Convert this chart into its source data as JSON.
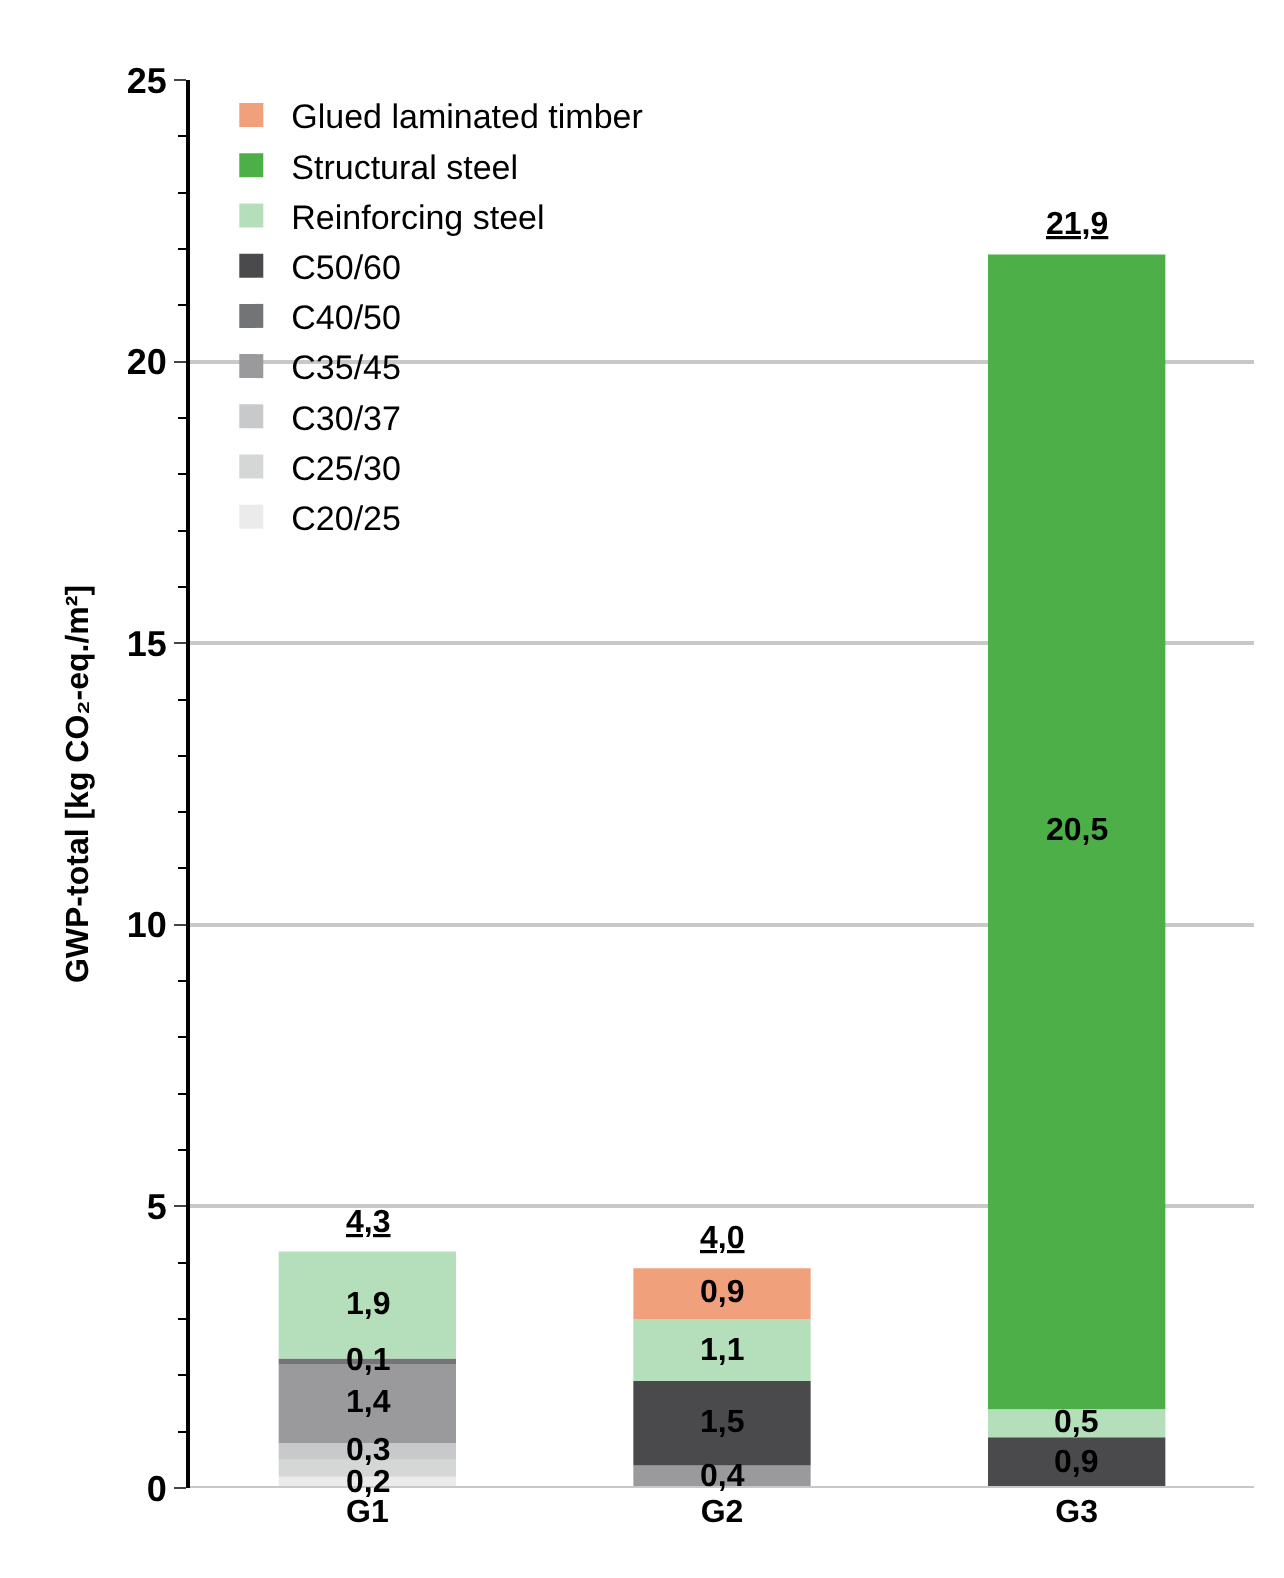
{
  "chart_data": {
    "type": "bar",
    "stacked": true,
    "ylabel": "GWP-total [kg CO₂-eq./m²]",
    "categories": [
      "G1",
      "G2",
      "G3"
    ],
    "series": [
      {
        "name": "C20/25",
        "color": "#ebebeb",
        "values": [
          0.2,
          null,
          null
        ],
        "value_labels": [
          "0,2",
          null,
          null
        ]
      },
      {
        "name": "C25/30",
        "color": "#d5d7d7",
        "values": [
          0.3,
          null,
          null
        ],
        "value_labels": [
          null,
          null,
          null
        ]
      },
      {
        "name": "C30/37",
        "color": "#c8c9ca",
        "values": [
          0.3,
          null,
          null
        ],
        "value_labels": [
          "0,3",
          null,
          null
        ]
      },
      {
        "name": "C35/45",
        "color": "#9a9a9c",
        "values": [
          1.4,
          0.4,
          null
        ],
        "value_labels": [
          "1,4",
          "0,4",
          null
        ]
      },
      {
        "name": "C40/50",
        "color": "#737476",
        "values": [
          0.1,
          null,
          null
        ],
        "value_labels": [
          "0,1",
          null,
          null
        ]
      },
      {
        "name": "C50/60",
        "color": "#4a4a4c",
        "values": [
          null,
          1.5,
          0.9
        ],
        "value_labels": [
          null,
          "1,5",
          "0,9"
        ]
      },
      {
        "name": "Reinforcing steel",
        "color": "#b5dfbb",
        "values": [
          1.9,
          1.1,
          0.5
        ],
        "value_labels": [
          "1,9",
          "1,1",
          "0,5"
        ]
      },
      {
        "name": "Structural steel",
        "color": "#4caf48",
        "values": [
          null,
          null,
          20.5
        ],
        "value_labels": [
          null,
          null,
          "20,5"
        ]
      },
      {
        "name": "Glued laminated timber",
        "color": "#f0a07a",
        "values": [
          null,
          0.9,
          null
        ],
        "value_labels": [
          null,
          "0,9",
          null
        ]
      }
    ],
    "totals": [
      "4,3",
      "4,0",
      "21,9"
    ],
    "ylim": [
      0,
      25
    ],
    "yticks": [
      0,
      5,
      10,
      15,
      20,
      25
    ],
    "grid": "y",
    "legend": "top left"
  }
}
